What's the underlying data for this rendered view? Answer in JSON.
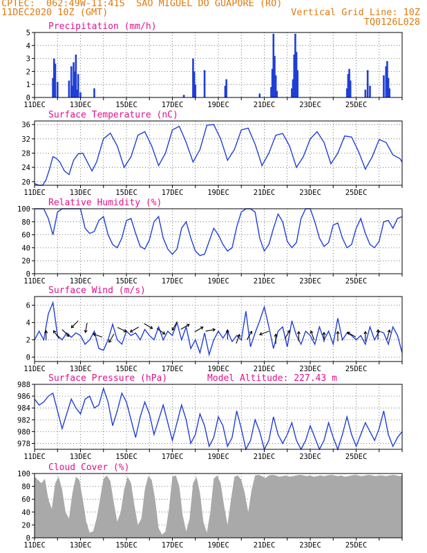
{
  "header": {
    "line1": "CPTEC:  062:49W-11:41S  SAO MIGUEL DO GUAPORE (RO)",
    "line2_left": "11DEC2020 10Z (GMT)",
    "line2_right": "Vertical Grid Line: 10Z",
    "line3_right": "TQ0126L028"
  },
  "colors": {
    "header": "#e07a10",
    "title": "#e0108f",
    "series": "#1f3fd6",
    "cloud": "#a9a9a9",
    "arrow": "#000000"
  },
  "x_ticks": [
    "11DEC",
    "13DEC",
    "15DEC",
    "17DEC",
    "19DEC",
    "21DEC",
    "23DEC",
    "25DEC"
  ],
  "chart_data": [
    {
      "id": "precip",
      "type": "bar",
      "title": "Precipitation (mm/h)",
      "ylim": [
        0,
        5
      ],
      "yticks": [
        0,
        1,
        2,
        3,
        4,
        5
      ],
      "x_day_range": [
        0,
        16
      ],
      "values": [
        [
          0.8,
          1.5
        ],
        [
          0.85,
          3.0
        ],
        [
          0.9,
          2.6
        ],
        [
          1.0,
          1.2
        ],
        [
          1.5,
          1.3
        ],
        [
          1.6,
          2.4
        ],
        [
          1.65,
          0.9
        ],
        [
          1.7,
          2.7
        ],
        [
          1.75,
          2.0
        ],
        [
          1.8,
          3.3
        ],
        [
          1.85,
          0.6
        ],
        [
          1.9,
          1.8
        ],
        [
          2.0,
          0.4
        ],
        [
          2.6,
          0.7
        ],
        [
          6.5,
          0.2
        ],
        [
          6.9,
          3.0
        ],
        [
          6.95,
          2.0
        ],
        [
          7.0,
          1.0
        ],
        [
          7.4,
          2.1
        ],
        [
          8.3,
          0.9
        ],
        [
          8.35,
          1.4
        ],
        [
          9.8,
          0.3
        ],
        [
          10.3,
          0.8
        ],
        [
          10.35,
          2.2
        ],
        [
          10.4,
          4.9
        ],
        [
          10.45,
          3.2
        ],
        [
          10.5,
          1.7
        ],
        [
          10.55,
          0.5
        ],
        [
          11.2,
          0.7
        ],
        [
          11.25,
          1.4
        ],
        [
          11.3,
          3.3
        ],
        [
          11.35,
          4.9
        ],
        [
          11.4,
          3.5
        ],
        [
          11.45,
          2.1
        ],
        [
          13.6,
          0.7
        ],
        [
          13.65,
          1.8
        ],
        [
          13.7,
          2.2
        ],
        [
          13.75,
          1.3
        ],
        [
          14.4,
          0.6
        ],
        [
          14.5,
          2.1
        ],
        [
          14.6,
          0.9
        ],
        [
          15.2,
          1.7
        ],
        [
          15.3,
          2.4
        ],
        [
          15.35,
          2.8
        ],
        [
          15.4,
          1.5
        ],
        [
          15.45,
          0.7
        ]
      ]
    },
    {
      "id": "temp",
      "type": "line",
      "title": "Surface Temperature (nC)",
      "ylim": [
        19,
        37
      ],
      "yticks": [
        20,
        24,
        28,
        32,
        36
      ],
      "x_day_range": [
        0,
        16
      ],
      "x": [
        0,
        0.1,
        0.2,
        0.35,
        0.5,
        0.65,
        0.8,
        0.95,
        1.1,
        1.3,
        1.5,
        1.7,
        1.9,
        2.1,
        2.3,
        2.5,
        2.7,
        3.0,
        3.3,
        3.6,
        3.9,
        4.2,
        4.5,
        4.8,
        5.1,
        5.4,
        5.7,
        6.0,
        6.3,
        6.6,
        6.9,
        7.2,
        7.5,
        7.8,
        8.1,
        8.4,
        8.7,
        9.0,
        9.3,
        9.6,
        9.9,
        10.2,
        10.5,
        10.8,
        11.1,
        11.4,
        11.7,
        12.0,
        12.3,
        12.6,
        12.9,
        13.2,
        13.5,
        13.8,
        14.1,
        14.4,
        14.7,
        15.0,
        15.3,
        15.6,
        15.9,
        16.0
      ],
      "y": [
        19.5,
        19.2,
        19.0,
        18.8,
        20.5,
        23.5,
        27.0,
        26.5,
        25.5,
        23.0,
        22.0,
        26.0,
        27.8,
        28.0,
        25.5,
        23.0,
        25.5,
        32.0,
        33.6,
        30.0,
        24.0,
        27.0,
        33.0,
        34.0,
        30.0,
        24.5,
        28.0,
        34.5,
        35.5,
        31.0,
        25.5,
        29.0,
        35.8,
        36.0,
        32.0,
        26.0,
        29.0,
        34.5,
        35.0,
        30.5,
        24.5,
        28.0,
        33.0,
        33.5,
        30.0,
        24.0,
        27.0,
        32.0,
        34.0,
        31.0,
        25.0,
        28.0,
        32.8,
        32.5,
        28.5,
        23.5,
        27.0,
        31.8,
        31.0,
        27.5,
        26.5,
        25.5
      ]
    },
    {
      "id": "rh",
      "type": "line",
      "title": "Relative Humidity (%)",
      "ylim": [
        0,
        100
      ],
      "yticks": [
        0,
        20,
        40,
        60,
        80,
        100
      ],
      "x_day_range": [
        0,
        16
      ],
      "x": [
        0,
        0.2,
        0.4,
        0.6,
        0.8,
        1.0,
        1.2,
        1.4,
        1.6,
        1.8,
        2.0,
        2.2,
        2.4,
        2.6,
        2.8,
        3.0,
        3.2,
        3.4,
        3.6,
        3.8,
        4.0,
        4.2,
        4.4,
        4.6,
        4.8,
        5.0,
        5.2,
        5.4,
        5.6,
        5.8,
        6.0,
        6.2,
        6.4,
        6.6,
        6.8,
        7.0,
        7.2,
        7.4,
        7.6,
        7.8,
        8.0,
        8.2,
        8.4,
        8.6,
        8.8,
        9.0,
        9.2,
        9.4,
        9.6,
        9.8,
        10.0,
        10.2,
        10.4,
        10.6,
        10.8,
        11.0,
        11.2,
        11.4,
        11.6,
        11.8,
        12.0,
        12.2,
        12.4,
        12.6,
        12.8,
        13.0,
        13.2,
        13.4,
        13.6,
        13.8,
        14.0,
        14.2,
        14.4,
        14.6,
        14.8,
        15.0,
        15.2,
        15.4,
        15.6,
        15.8,
        16.0
      ],
      "y": [
        100,
        100,
        100,
        85,
        60,
        95,
        100,
        100,
        100,
        100,
        100,
        70,
        62,
        65,
        82,
        88,
        60,
        45,
        40,
        55,
        82,
        85,
        62,
        42,
        38,
        52,
        80,
        88,
        55,
        38,
        30,
        38,
        70,
        80,
        55,
        35,
        28,
        30,
        50,
        70,
        60,
        45,
        35,
        40,
        72,
        95,
        100,
        100,
        95,
        55,
        35,
        45,
        70,
        92,
        80,
        50,
        40,
        48,
        85,
        100,
        100,
        80,
        55,
        42,
        48,
        75,
        78,
        55,
        40,
        45,
        70,
        85,
        62,
        45,
        40,
        50,
        80,
        82,
        70,
        85,
        88
      ]
    },
    {
      "id": "wind",
      "type": "line",
      "title": "Surface Wind (m/s)",
      "ylim": [
        -0.5,
        7
      ],
      "yticks": [
        0,
        2,
        4,
        6
      ],
      "x_day_range": [
        0,
        16
      ],
      "x": [
        0,
        0.2,
        0.4,
        0.6,
        0.8,
        1.0,
        1.2,
        1.4,
        1.6,
        1.8,
        2.0,
        2.2,
        2.4,
        2.6,
        2.8,
        3.0,
        3.2,
        3.4,
        3.6,
        3.8,
        4.0,
        4.2,
        4.4,
        4.6,
        4.8,
        5.0,
        5.2,
        5.4,
        5.6,
        5.8,
        6.0,
        6.2,
        6.4,
        6.6,
        6.8,
        7.0,
        7.2,
        7.4,
        7.6,
        7.8,
        8.0,
        8.2,
        8.4,
        8.6,
        8.8,
        9.0,
        9.2,
        9.4,
        9.6,
        9.8,
        10.0,
        10.2,
        10.4,
        10.6,
        10.8,
        11.0,
        11.2,
        11.4,
        11.6,
        11.8,
        12.0,
        12.2,
        12.4,
        12.6,
        12.8,
        13.0,
        13.2,
        13.4,
        13.6,
        13.8,
        14.0,
        14.2,
        14.4,
        14.6,
        14.8,
        15.0,
        15.2,
        15.4,
        15.6,
        15.8,
        16.0
      ],
      "y": [
        2.0,
        3.0,
        2.0,
        5.0,
        6.3,
        2.5,
        2.0,
        2.8,
        2.3,
        2.8,
        2.5,
        1.5,
        2.0,
        3.0,
        1.0,
        0.8,
        2.0,
        3.8,
        2.0,
        1.5,
        3.0,
        2.5,
        2.8,
        2.0,
        3.2,
        2.5,
        2.0,
        3.5,
        2.0,
        3.0,
        2.5,
        4.0,
        2.0,
        3.5,
        1.0,
        2.0,
        0.5,
        2.8,
        0.3,
        2.0,
        3.0,
        2.2,
        3.0,
        1.8,
        2.5,
        2.0,
        5.3,
        1.2,
        2.8,
        4.2,
        5.8,
        3.5,
        1.0,
        3.0,
        3.5,
        1.2,
        4.2,
        2.5,
        1.5,
        3.0,
        2.5,
        1.5,
        3.5,
        2.0,
        3.0,
        1.5,
        4.5,
        2.0,
        2.8,
        2.5,
        2.0,
        2.5,
        1.5,
        3.5,
        2.0,
        3.0,
        2.8,
        1.5,
        3.5,
        2.5,
        0.5
      ],
      "arrows": [
        [
          0.5,
          2.5,
          270
        ],
        [
          0.95,
          2.6,
          235
        ],
        [
          1.35,
          2.8,
          45
        ],
        [
          1.75,
          3.8,
          135
        ],
        [
          2.25,
          3.4,
          100
        ],
        [
          2.75,
          2.5,
          200
        ],
        [
          3.35,
          2.2,
          120
        ],
        [
          3.8,
          3.2,
          25
        ],
        [
          4.35,
          3.2,
          150
        ],
        [
          4.95,
          3.6,
          30
        ],
        [
          5.5,
          3.0,
          35
        ],
        [
          6.1,
          3.6,
          120
        ],
        [
          6.55,
          3.5,
          -30
        ],
        [
          7.15,
          3.2,
          -30
        ],
        [
          7.65,
          3.1,
          -10
        ],
        [
          8.4,
          2.6,
          270
        ],
        [
          8.85,
          2.1,
          290
        ],
        [
          9.35,
          2.5,
          300
        ],
        [
          10.0,
          2.8,
          160
        ],
        [
          10.5,
          2.1,
          270
        ],
        [
          11.0,
          2.6,
          300
        ],
        [
          11.5,
          2.4,
          270
        ],
        [
          12.1,
          2.5,
          250
        ],
        [
          12.6,
          2.3,
          270
        ],
        [
          13.2,
          2.4,
          270
        ],
        [
          13.8,
          2.6,
          210
        ],
        [
          14.4,
          2.4,
          270
        ],
        [
          14.95,
          2.6,
          270
        ],
        [
          15.4,
          2.6,
          285
        ]
      ]
    },
    {
      "id": "pres",
      "type": "line",
      "title": "Surface Pressure (hPa)",
      "annotation": "Model Altitude: 227.43 m",
      "ylim": [
        977,
        988
      ],
      "yticks": [
        978,
        980,
        982,
        984,
        986,
        988
      ],
      "x_day_range": [
        0,
        16
      ],
      "x": [
        0,
        0.2,
        0.4,
        0.6,
        0.8,
        1.0,
        1.2,
        1.4,
        1.6,
        1.8,
        2.0,
        2.2,
        2.4,
        2.6,
        2.8,
        3.0,
        3.2,
        3.4,
        3.6,
        3.8,
        4.0,
        4.2,
        4.4,
        4.6,
        4.8,
        5.0,
        5.2,
        5.4,
        5.6,
        5.8,
        6.0,
        6.2,
        6.4,
        6.6,
        6.8,
        7.0,
        7.2,
        7.4,
        7.6,
        7.8,
        8.0,
        8.2,
        8.4,
        8.6,
        8.8,
        9.0,
        9.2,
        9.4,
        9.6,
        9.8,
        10.0,
        10.2,
        10.4,
        10.6,
        10.8,
        11.0,
        11.2,
        11.4,
        11.6,
        11.8,
        12.0,
        12.2,
        12.4,
        12.6,
        12.8,
        13.0,
        13.2,
        13.4,
        13.6,
        13.8,
        14.0,
        14.2,
        14.4,
        14.6,
        14.8,
        15.0,
        15.2,
        15.4,
        15.6,
        15.8,
        16.0
      ],
      "y": [
        985.5,
        984.5,
        985.0,
        986.0,
        986.5,
        983.5,
        980.5,
        983.0,
        985.5,
        984.0,
        983.0,
        985.5,
        986.0,
        984.0,
        984.5,
        987.3,
        985.0,
        981.0,
        983.5,
        986.5,
        985.0,
        982.0,
        979.0,
        982.5,
        985.0,
        983.0,
        979.5,
        982.0,
        984.5,
        981.5,
        978.5,
        981.5,
        984.5,
        982.0,
        978.0,
        979.5,
        983.0,
        981.0,
        977.5,
        979.0,
        982.5,
        981.0,
        977.5,
        979.0,
        983.5,
        980.5,
        977.0,
        978.5,
        982.0,
        980.0,
        977.0,
        978.5,
        982.5,
        979.5,
        978.0,
        979.5,
        981.5,
        978.5,
        977.0,
        978.5,
        981.0,
        979.0,
        977.0,
        978.5,
        981.5,
        979.0,
        977.0,
        979.5,
        982.5,
        979.5,
        977.5,
        979.5,
        981.5,
        980.0,
        978.5,
        980.5,
        983.5,
        979.5,
        977.5,
        979.0,
        980.0
      ]
    },
    {
      "id": "cloud",
      "type": "area",
      "title": "Cloud Cover (%)",
      "ylim": [
        0,
        100
      ],
      "yticks": [
        0,
        20,
        40,
        60,
        80,
        100
      ],
      "x_day_range": [
        0,
        16
      ],
      "x": [
        0,
        0.15,
        0.3,
        0.45,
        0.6,
        0.75,
        0.9,
        1.05,
        1.2,
        1.35,
        1.5,
        1.65,
        1.8,
        1.95,
        2.1,
        2.25,
        2.4,
        2.55,
        2.7,
        2.85,
        3.0,
        3.15,
        3.3,
        3.45,
        3.6,
        3.75,
        3.9,
        4.05,
        4.2,
        4.35,
        4.5,
        4.65,
        4.8,
        4.95,
        5.1,
        5.25,
        5.4,
        5.55,
        5.7,
        5.85,
        6.0,
        6.15,
        6.3,
        6.45,
        6.6,
        6.75,
        6.9,
        7.05,
        7.2,
        7.35,
        7.5,
        7.65,
        7.8,
        7.95,
        8.1,
        8.25,
        8.4,
        8.55,
        8.7,
        8.85,
        9.0,
        9.15,
        9.3,
        9.45,
        9.6,
        9.75,
        9.9,
        10.05,
        10.2,
        10.35,
        10.5,
        10.65,
        10.8,
        10.95,
        11.1,
        11.25,
        11.4,
        11.55,
        11.7,
        11.85,
        12.0,
        12.15,
        12.3,
        12.45,
        12.6,
        12.75,
        12.9,
        13.05,
        13.2,
        13.35,
        13.5,
        13.65,
        13.8,
        13.95,
        14.1,
        14.25,
        14.4,
        14.55,
        14.7,
        14.85,
        15.0,
        15.15,
        15.3,
        15.45,
        15.6,
        15.75,
        15.9,
        16.0
      ],
      "y": [
        95,
        90,
        85,
        92,
        60,
        45,
        85,
        95,
        75,
        40,
        30,
        70,
        95,
        90,
        60,
        25,
        8,
        10,
        30,
        60,
        92,
        97,
        88,
        55,
        25,
        40,
        75,
        95,
        85,
        50,
        20,
        30,
        75,
        96,
        90,
        60,
        15,
        5,
        10,
        45,
        95,
        97,
        80,
        35,
        10,
        30,
        85,
        95,
        70,
        25,
        8,
        40,
        92,
        97,
        85,
        50,
        20,
        60,
        95,
        97,
        90,
        70,
        40,
        75,
        97,
        98,
        96,
        93,
        97,
        98,
        97,
        95,
        96,
        97,
        95,
        96,
        97,
        98,
        97,
        96,
        97,
        95,
        96,
        97,
        96,
        97,
        98,
        97,
        96,
        97,
        95,
        96,
        97,
        98,
        97,
        96,
        97,
        98,
        97,
        96,
        97,
        97,
        96,
        97,
        98,
        97,
        96,
        97
      ]
    }
  ]
}
